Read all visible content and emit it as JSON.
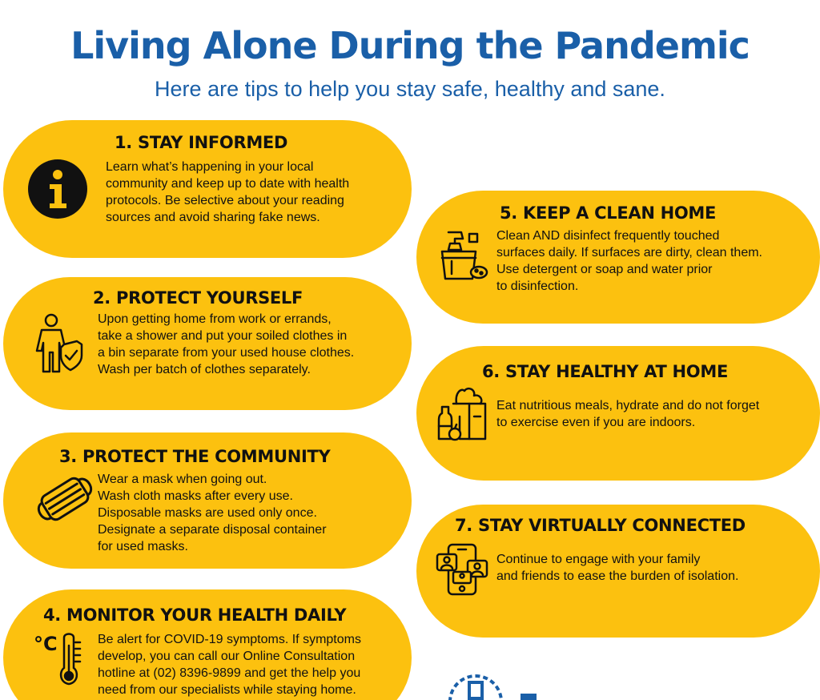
{
  "header": {
    "title": "Living Alone During the Pandemic",
    "subtitle": "Here are tips to help you stay safe, healthy and sane."
  },
  "colors": {
    "title_blue": "#1a5fa8",
    "card_yellow": "#fcc10f",
    "text_dark": "#111111"
  },
  "tips": [
    {
      "title": "1. STAY INFORMED",
      "icon": "info-icon",
      "lines": [
        "Learn what’s happening in your local",
        "community and keep up to date with health",
        "protocols. Be selective about your reading",
        "sources and avoid sharing fake news."
      ]
    },
    {
      "title": "2. PROTECT YOURSELF",
      "icon": "person-shield-icon",
      "lines": [
        "Upon getting home from work or errands,",
        "take a shower and put your soiled clothes in",
        "a bin separate from your used house clothes.",
        "Wash per batch of clothes separately."
      ]
    },
    {
      "title": "3. PROTECT THE COMMUNITY",
      "icon": "face-mask-icon",
      "lines": [
        "Wear a mask when going out.",
        "Wash cloth masks after every use.",
        "Disposable masks are used only once.",
        "Designate a separate disposal container",
        "for used masks."
      ]
    },
    {
      "title": "4. MONITOR YOUR HEALTH DAILY",
      "icon": "thermometer-icon",
      "icon_text": "°C",
      "lines": [
        "Be alert for COVID-19 symptoms. If symptoms",
        "develop, you can call our Online Consultation",
        "hotline at (02) 8396-9899 and get the help you",
        "need from our specialists while staying home."
      ]
    },
    {
      "title": "5. KEEP A CLEAN HOME",
      "icon": "cleaning-supplies-icon",
      "lines": [
        "Clean AND disinfect frequently touched",
        "surfaces daily. If surfaces are dirty, clean them.",
        "Use detergent or soap and water prior",
        "to disinfection."
      ]
    },
    {
      "title": "6. STAY HEALTHY AT HOME",
      "icon": "groceries-icon",
      "lines": [
        "Eat nutritious meals, hydrate and do not forget",
        "to exercise even if you are indoors."
      ]
    },
    {
      "title": "7. STAY VIRTUALLY CONNECTED",
      "icon": "video-call-icon",
      "lines": [
        "Continue to engage with your family",
        "and friends to ease the burden of isolation."
      ]
    }
  ]
}
